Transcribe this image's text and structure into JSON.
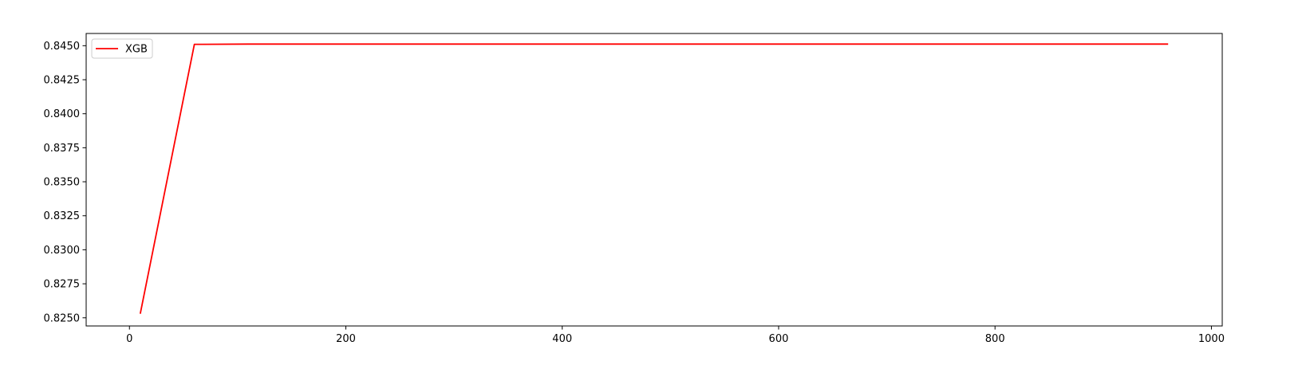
{
  "chart_data": {
    "type": "line",
    "title": "",
    "xlabel": "",
    "ylabel": "",
    "xlim": [
      -40,
      1010
    ],
    "ylim": [
      0.8244,
      0.8459
    ],
    "xticks": [
      0,
      200,
      400,
      600,
      800,
      1000
    ],
    "xtick_labels": [
      "0",
      "200",
      "400",
      "600",
      "800",
      "1000"
    ],
    "yticks": [
      0.825,
      0.8275,
      0.83,
      0.8325,
      0.835,
      0.8375,
      0.84,
      0.8425,
      0.845
    ],
    "ytick_labels": [
      "0.8250",
      "0.8275",
      "0.8300",
      "0.8325",
      "0.8350",
      "0.8375",
      "0.8400",
      "0.8425",
      "0.8450"
    ],
    "grid": false,
    "legend": "upper-left",
    "series": [
      {
        "name": "XGB",
        "color": "#ff0000",
        "x": [
          10,
          60,
          110,
          160,
          210,
          260,
          310,
          360,
          410,
          460,
          510,
          560,
          610,
          660,
          710,
          760,
          810,
          860,
          910,
          960
        ],
        "y": [
          0.8253,
          0.8451,
          0.84512,
          0.84512,
          0.84512,
          0.84512,
          0.84512,
          0.84512,
          0.84512,
          0.84512,
          0.84512,
          0.84512,
          0.84512,
          0.84512,
          0.84512,
          0.84512,
          0.84512,
          0.84512,
          0.84512,
          0.84512
        ]
      }
    ]
  }
}
